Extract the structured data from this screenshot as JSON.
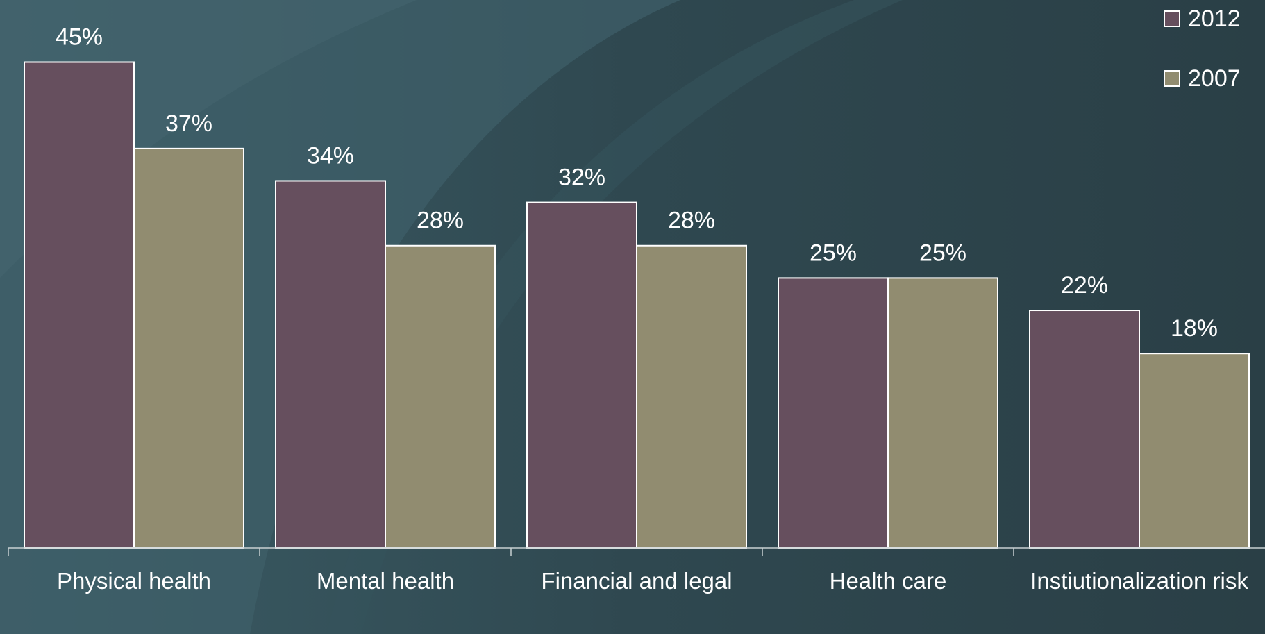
{
  "chart_data": {
    "type": "bar",
    "categories": [
      "Physical health",
      "Mental health",
      "Financial and legal",
      "Health care",
      "Instiutionalization risk"
    ],
    "series": [
      {
        "name": "2012",
        "color": "#664f5e",
        "values": [
          45,
          34,
          32,
          25,
          22
        ],
        "value_labels": [
          "45%",
          "34%",
          "32%",
          "25%",
          "22%"
        ]
      },
      {
        "name": "2007",
        "color": "#918c70",
        "values": [
          37,
          28,
          28,
          25,
          18
        ],
        "value_labels": [
          "37%",
          "28%",
          "28%",
          "25%",
          "18%"
        ]
      }
    ],
    "legend": "top-right"
  }
}
